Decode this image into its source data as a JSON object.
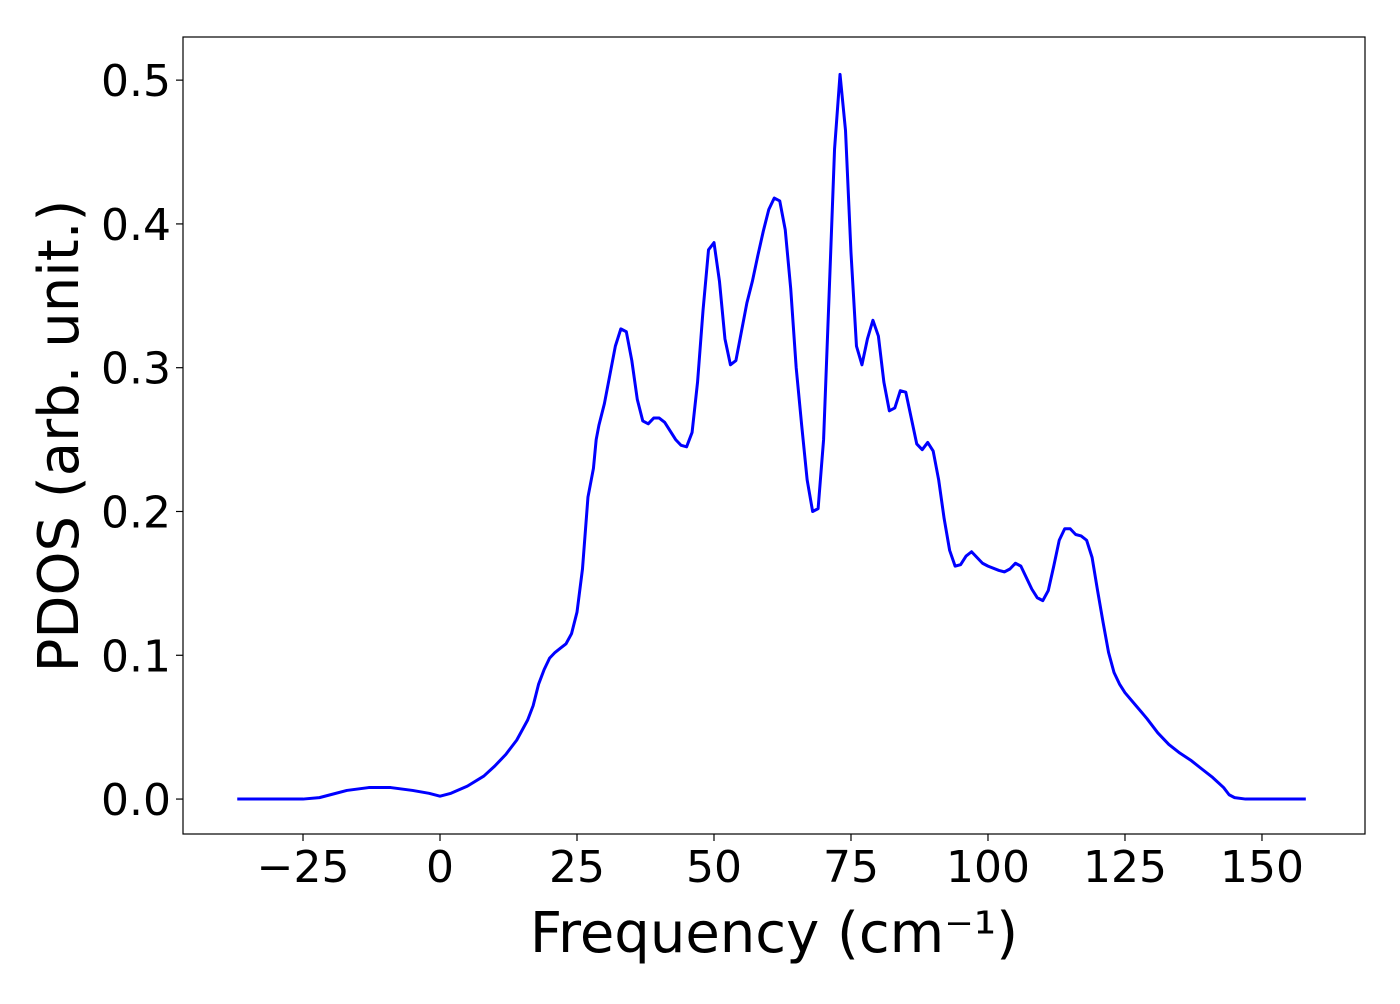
{
  "chart_data": {
    "type": "line",
    "x_label": "Frequency (cm⁻¹)",
    "y_label": "PDOS (arb. unit.)",
    "xlim": [
      -46.9,
      168.8
    ],
    "ylim": [
      -0.0243,
      0.53
    ],
    "xticks": [
      {
        "value": -25,
        "label": "−25"
      },
      0,
      25,
      50,
      75,
      100,
      125,
      150
    ],
    "yticks": [
      {
        "value": 0,
        "label": "0.0"
      },
      0.1,
      0.2,
      0.3,
      0.4,
      0.5
    ],
    "grid": false,
    "x": [
      -37,
      -25,
      -22,
      -20,
      -17,
      -13,
      -9,
      -5,
      -2,
      0,
      2,
      5,
      8,
      10,
      12,
      14,
      16,
      17,
      18,
      19,
      20,
      21,
      22,
      23,
      24,
      25,
      26,
      27,
      28,
      28.5,
      29,
      30,
      31,
      32,
      33,
      34,
      35,
      36,
      37,
      38,
      39,
      40,
      41,
      42,
      43,
      44,
      45,
      46,
      47,
      48,
      49,
      50,
      51,
      52,
      53,
      54,
      55,
      56,
      57,
      58,
      59,
      60,
      61,
      62,
      63,
      64,
      65,
      66,
      67,
      68,
      69,
      70,
      71,
      72,
      73,
      74,
      75,
      76,
      77,
      78,
      79,
      80,
      81,
      82,
      83,
      84,
      85,
      86,
      87,
      88,
      89,
      90,
      91,
      92,
      93,
      94,
      95,
      96,
      97,
      98,
      99,
      100,
      102,
      103,
      104,
      105,
      106,
      107,
      108,
      109,
      110,
      111,
      112,
      113,
      114,
      115,
      116,
      117,
      118,
      119,
      120,
      121,
      122,
      123,
      124,
      125,
      127,
      129,
      131,
      133,
      135,
      137,
      139,
      141,
      143,
      144,
      145,
      147,
      158
    ],
    "series": [
      {
        "color": "#0000ff",
        "values": [
          0,
          0,
          0.001,
          0.003,
          0.006,
          0.008,
          0.008,
          0.006,
          0.004,
          0.002,
          0.004,
          0.009,
          0.016,
          0.023,
          0.031,
          0.041,
          0.055,
          0.065,
          0.08,
          0.09,
          0.098,
          0.102,
          0.105,
          0.108,
          0.115,
          0.13,
          0.16,
          0.21,
          0.23,
          0.25,
          0.26,
          0.275,
          0.295,
          0.315,
          0.327,
          0.325,
          0.305,
          0.278,
          0.263,
          0.261,
          0.265,
          0.265,
          0.262,
          0.256,
          0.25,
          0.246,
          0.245,
          0.255,
          0.29,
          0.34,
          0.382,
          0.387,
          0.36,
          0.32,
          0.302,
          0.305,
          0.325,
          0.345,
          0.36,
          0.378,
          0.395,
          0.41,
          0.418,
          0.416,
          0.396,
          0.355,
          0.3,
          0.26,
          0.222,
          0.2,
          0.202,
          0.25,
          0.35,
          0.452,
          0.504,
          0.465,
          0.38,
          0.315,
          0.302,
          0.32,
          0.333,
          0.322,
          0.29,
          0.27,
          0.272,
          0.284,
          0.283,
          0.265,
          0.247,
          0.243,
          0.248,
          0.242,
          0.222,
          0.195,
          0.173,
          0.162,
          0.163,
          0.169,
          0.172,
          0.168,
          0.164,
          0.162,
          0.159,
          0.158,
          0.16,
          0.164,
          0.162,
          0.154,
          0.146,
          0.14,
          0.138,
          0.145,
          0.162,
          0.18,
          0.188,
          0.188,
          0.184,
          0.183,
          0.18,
          0.168,
          0.145,
          0.123,
          0.102,
          0.088,
          0.08,
          0.074,
          0.065,
          0.056,
          0.046,
          0.038,
          0.032,
          0.027,
          0.021,
          0.015,
          0.008,
          0.003,
          0.001,
          0,
          0
        ]
      }
    ]
  }
}
